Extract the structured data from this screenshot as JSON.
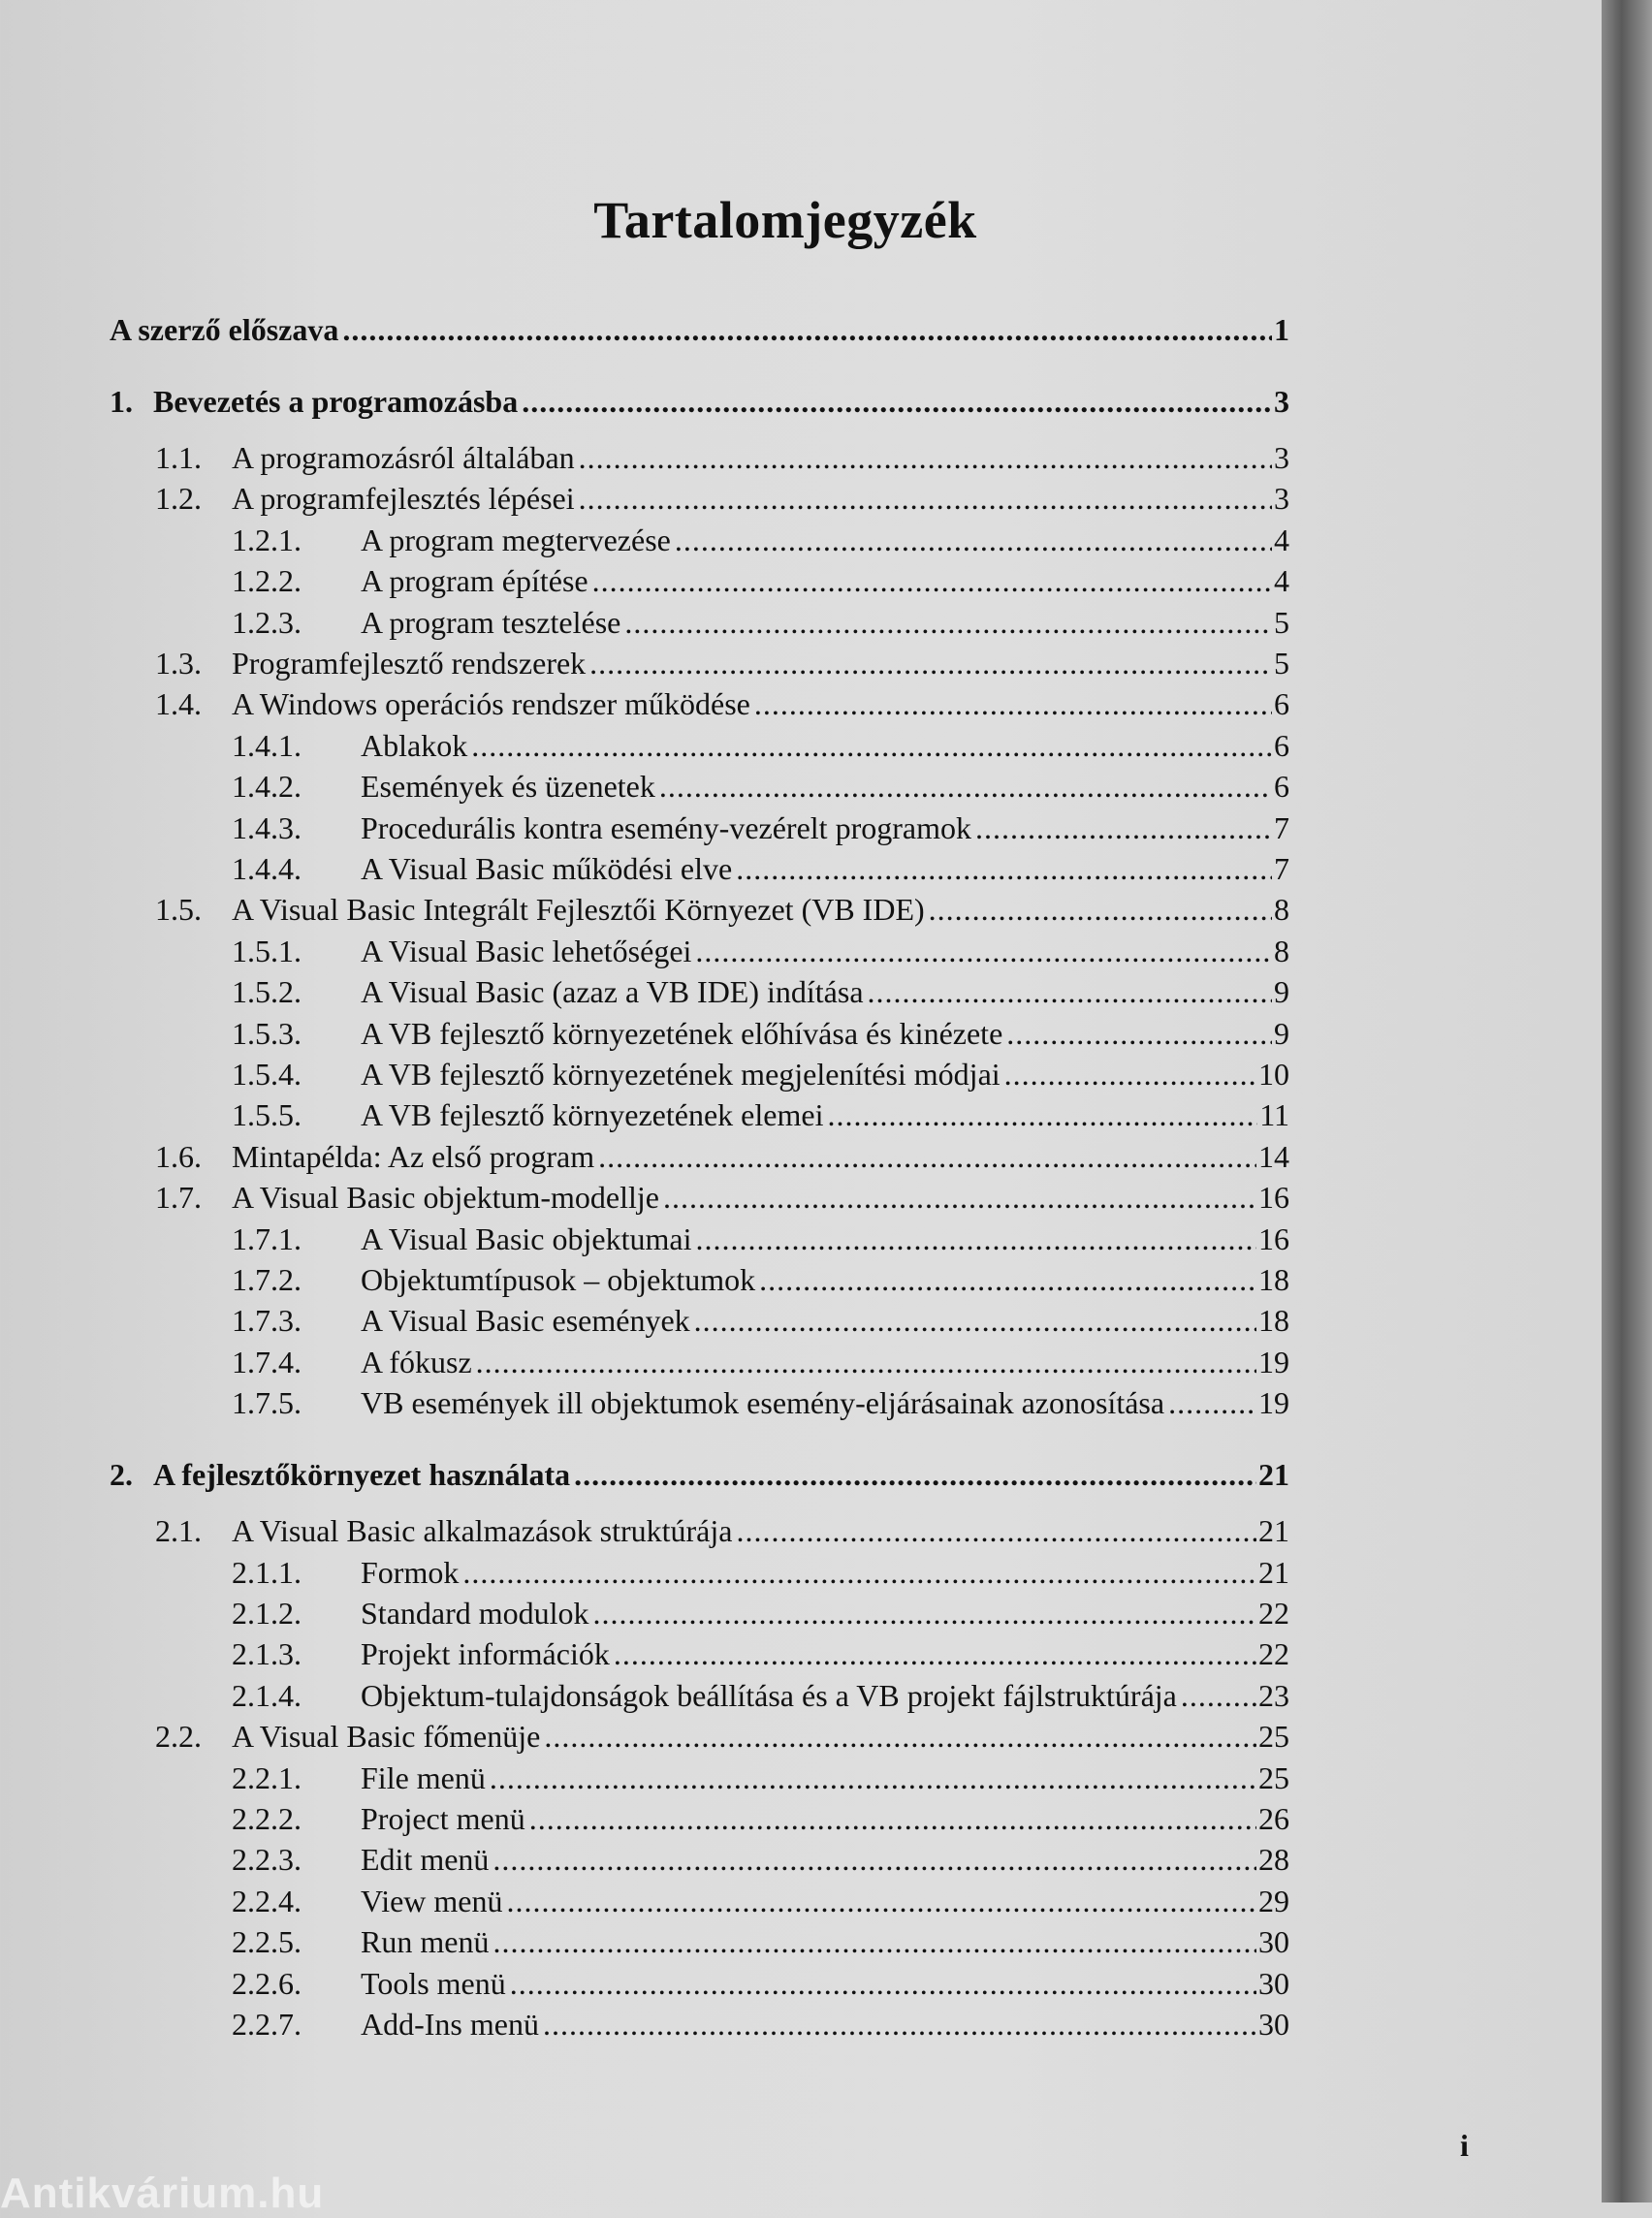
{
  "title": "Tartalomjegyzék",
  "entries": [
    {
      "level": 0,
      "num": "",
      "label": "A szerző előszava",
      "page": "1"
    },
    {
      "level": 0,
      "num": "1.",
      "label": "Bevezetés a programozásba",
      "page": "3"
    },
    {
      "level": 1,
      "num": "1.1.",
      "label": "A programozásról általában",
      "page": "3"
    },
    {
      "level": 1,
      "num": "1.2.",
      "label": "A programfejlesztés lépései",
      "page": "3"
    },
    {
      "level": 2,
      "num": "1.2.1.",
      "label": "A program megtervezése",
      "page": "4"
    },
    {
      "level": 2,
      "num": "1.2.2.",
      "label": "A program építése",
      "page": "4"
    },
    {
      "level": 2,
      "num": "1.2.3.",
      "label": "A program tesztelése",
      "page": "5"
    },
    {
      "level": 1,
      "num": "1.3.",
      "label": "Programfejlesztő rendszerek",
      "page": "5"
    },
    {
      "level": 1,
      "num": "1.4.",
      "label": "A Windows operációs rendszer működése",
      "page": "6"
    },
    {
      "level": 2,
      "num": "1.4.1.",
      "label": "Ablakok",
      "page": "6"
    },
    {
      "level": 2,
      "num": "1.4.2.",
      "label": "Események és üzenetek",
      "page": "6"
    },
    {
      "level": 2,
      "num": "1.4.3.",
      "label": "Procedurális kontra esemény-vezérelt programok",
      "page": "7"
    },
    {
      "level": 2,
      "num": "1.4.4.",
      "label": "A Visual Basic működési elve",
      "page": "7"
    },
    {
      "level": 1,
      "num": "1.5.",
      "label": "A Visual Basic Integrált Fejlesztői Környezet (VB IDE)",
      "page": "8"
    },
    {
      "level": 2,
      "num": "1.5.1.",
      "label": "A Visual Basic lehetőségei",
      "page": "8"
    },
    {
      "level": 2,
      "num": "1.5.2.",
      "label": "A Visual Basic (azaz a VB IDE)  indítása",
      "page": "9"
    },
    {
      "level": 2,
      "num": "1.5.3.",
      "label": "A VB fejlesztő környezetének előhívása és kinézete",
      "page": "9"
    },
    {
      "level": 2,
      "num": "1.5.4.",
      "label": "A VB fejlesztő környezetének megjelenítési módjai",
      "page": "10"
    },
    {
      "level": 2,
      "num": "1.5.5.",
      "label": "A VB fejlesztő környezetének elemei",
      "page": "11"
    },
    {
      "level": 1,
      "num": "1.6.",
      "label": "Mintapélda: Az első program",
      "page": "14"
    },
    {
      "level": 1,
      "num": "1.7.",
      "label": "A Visual Basic objektum-modellje",
      "page": "16"
    },
    {
      "level": 2,
      "num": "1.7.1.",
      "label": "A Visual Basic objektumai",
      "page": "16"
    },
    {
      "level": 2,
      "num": "1.7.2.",
      "label": "Objektumtípusok – objektumok",
      "page": "18"
    },
    {
      "level": 2,
      "num": "1.7.3.",
      "label": "A Visual Basic események",
      "page": "18"
    },
    {
      "level": 2,
      "num": "1.7.4.",
      "label": "A fókusz",
      "page": "19"
    },
    {
      "level": 2,
      "num": "1.7.5.",
      "label": "VB események ill objektumok esemény-eljárásainak azonosítása",
      "page": "19"
    },
    {
      "level": 0,
      "num": "2.",
      "label": "A fejlesztőkörnyezet használata",
      "page": "21"
    },
    {
      "level": 1,
      "num": "2.1.",
      "label": "A Visual Basic alkalmazások struktúrája",
      "page": "21"
    },
    {
      "level": 2,
      "num": "2.1.1.",
      "label": "Formok",
      "page": "21"
    },
    {
      "level": 2,
      "num": "2.1.2.",
      "label": "Standard modulok",
      "page": "22"
    },
    {
      "level": 2,
      "num": "2.1.3.",
      "label": "Projekt információk",
      "page": "22"
    },
    {
      "level": 2,
      "num": "2.1.4.",
      "label": "Objektum-tulajdonságok beállítása és a VB projekt fájlstruktúrája",
      "page": "23"
    },
    {
      "level": 1,
      "num": "2.2.",
      "label": "A Visual Basic főmenüje",
      "page": "25"
    },
    {
      "level": 2,
      "num": "2.2.1.",
      "label": "File menü",
      "page": "25"
    },
    {
      "level": 2,
      "num": "2.2.2.",
      "label": "Project menü",
      "page": "26"
    },
    {
      "level": 2,
      "num": "2.2.3.",
      "label": "Edit menü",
      "page": "28"
    },
    {
      "level": 2,
      "num": "2.2.4.",
      "label": "View menü",
      "page": "29"
    },
    {
      "level": 2,
      "num": "2.2.5.",
      "label": "Run  menü",
      "page": "30"
    },
    {
      "level": 2,
      "num": "2.2.6.",
      "label": "Tools menü",
      "page": "30"
    },
    {
      "level": 2,
      "num": "2.2.7.",
      "label": "Add-Ins menü",
      "page": "30"
    }
  ],
  "page_number": "i",
  "watermark": "Antikvárium.hu"
}
